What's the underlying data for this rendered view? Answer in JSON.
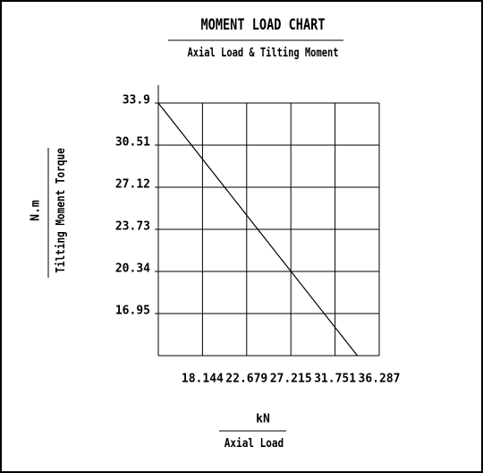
{
  "chart_data": {
    "type": "line",
    "title": "MOMENT LOAD CHART",
    "subtitle": "Axial Load & Tilting Moment",
    "y_unit": "N.m",
    "y_label": "Tilting Moment Torque",
    "x_unit": "kN",
    "x_label": "Axial Load",
    "x": [
      13.608,
      34.04
    ],
    "values": [
      33.9,
      13.56
    ],
    "color": "#000000",
    "xlim": [
      13.608,
      36.287
    ],
    "xticks": [
      18.144,
      22.679,
      27.215,
      31.751,
      36.287
    ],
    "ylim": [
      13.56,
      33.9
    ],
    "yticks": [
      16.95,
      20.34,
      23.73,
      27.12,
      30.51,
      33.9
    ],
    "grid": true
  }
}
